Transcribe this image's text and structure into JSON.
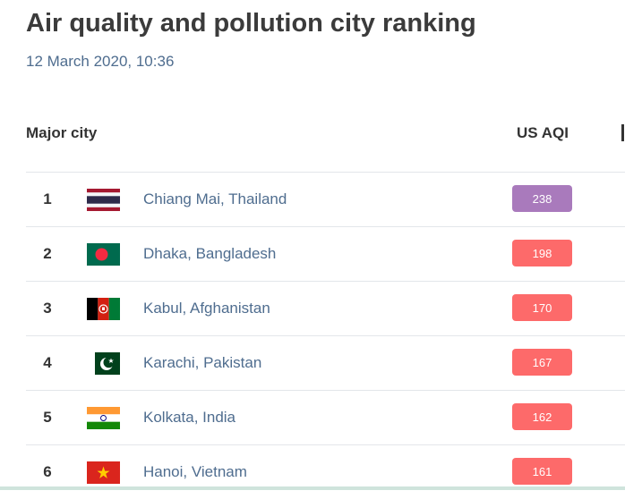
{
  "header": {
    "title": "Air quality and pollution city ranking",
    "timestamp": "12 March 2020, 10:36"
  },
  "table": {
    "col_city": "Major city",
    "col_aqi": "US AQI",
    "rows": [
      {
        "rank": "1",
        "city": "Chiang Mai, Thailand",
        "aqi": "238",
        "aqi_color": "#a97abc",
        "flag": "thailand-flag-icon"
      },
      {
        "rank": "2",
        "city": "Dhaka, Bangladesh",
        "aqi": "198",
        "aqi_color": "#fd6a6a",
        "flag": "bangladesh-flag-icon"
      },
      {
        "rank": "3",
        "city": "Kabul, Afghanistan",
        "aqi": "170",
        "aqi_color": "#fd6a6a",
        "flag": "afghanistan-flag-icon"
      },
      {
        "rank": "4",
        "city": "Karachi, Pakistan",
        "aqi": "167",
        "aqi_color": "#fd6a6a",
        "flag": "pakistan-flag-icon"
      },
      {
        "rank": "5",
        "city": "Kolkata, India",
        "aqi": "162",
        "aqi_color": "#fd6a6a",
        "flag": "india-flag-icon"
      },
      {
        "rank": "6",
        "city": "Hanoi, Vietnam",
        "aqi": "161",
        "aqi_color": "#fd6a6a",
        "flag": "vietnam-flag-icon"
      }
    ]
  }
}
